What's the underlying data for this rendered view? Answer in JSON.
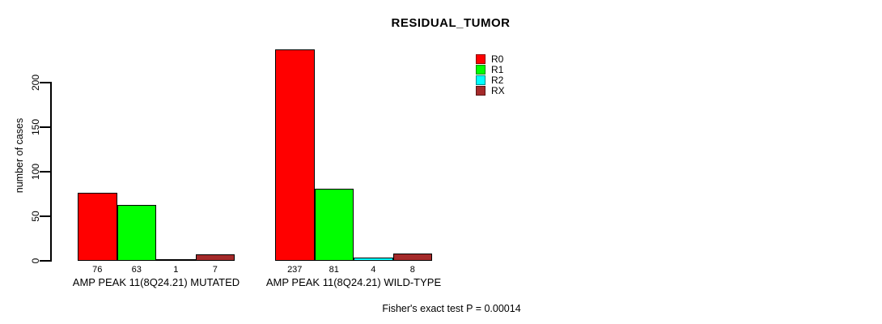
{
  "chart_data": {
    "type": "bar",
    "title": "RESIDUAL_TUMOR",
    "ylabel": "number of cases",
    "xlabel": "",
    "ylim": [
      0,
      200
    ],
    "yticks": [
      0,
      50,
      100,
      150,
      200
    ],
    "grid": false,
    "legend_position": "top-right",
    "bar_value_labels": true,
    "categories": [
      "AMP PEAK 11(8Q24.21) MUTATED",
      "AMP PEAK 11(8Q24.21) WILD-TYPE"
    ],
    "series": [
      {
        "name": "R0",
        "color": "#FF0000",
        "values": [
          76,
          237
        ]
      },
      {
        "name": "R1",
        "color": "#00FF00",
        "values": [
          63,
          81
        ]
      },
      {
        "name": "R2",
        "color": "#00FFFF",
        "values": [
          1,
          4
        ]
      },
      {
        "name": "RX",
        "color": "#A52A2A",
        "values": [
          7,
          8
        ]
      }
    ],
    "annotation": "Fisher's exact test P = 0.00014",
    "background_color": "#FFFFFF",
    "axis_color": "#000000"
  }
}
